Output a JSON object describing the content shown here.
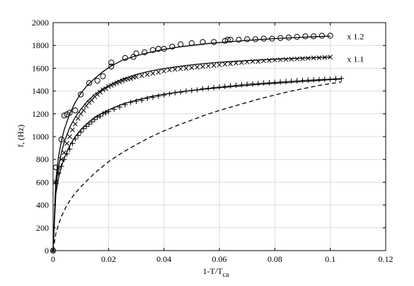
{
  "chart_data": {
    "type": "scatter",
    "xlabel": "1-T/T",
    "xlabel_subscript": "ca",
    "ylabel": "f, (Hz)",
    "xlim": [
      0,
      0.12
    ],
    "ylim": [
      0,
      2000
    ],
    "xticks": [
      0,
      0.02,
      0.04,
      0.06,
      0.08,
      0.1,
      0.12
    ],
    "xtick_labels": [
      "0",
      "0.02",
      "0.04",
      "0.06",
      "0.08",
      "0.1",
      "0.12"
    ],
    "yticks": [
      0,
      200,
      400,
      600,
      800,
      1000,
      1200,
      1400,
      1600,
      1800,
      2000
    ],
    "ytick_labels": [
      "0",
      "200",
      "400",
      "600",
      "800",
      "1000",
      "1200",
      "1400",
      "1600",
      "1800",
      "2000"
    ],
    "grid": true,
    "annotations": [
      {
        "text": "x 1.2",
        "x": 0.1035,
        "y": 1880
      },
      {
        "text": "x 1.1",
        "x": 0.1035,
        "y": 1680
      }
    ],
    "series": [
      {
        "marker": "circle",
        "style": "markers",
        "x": [
          0.0,
          0.001,
          0.003,
          0.004,
          0.005,
          0.006,
          0.008,
          0.01,
          0.013,
          0.016,
          0.018,
          0.021,
          0.021,
          0.026,
          0.029,
          0.03,
          0.033,
          0.036,
          0.038,
          0.04,
          0.043,
          0.046,
          0.05,
          0.054,
          0.058,
          0.062,
          0.063,
          0.064,
          0.067,
          0.07,
          0.073,
          0.076,
          0.079,
          0.082,
          0.085,
          0.088,
          0.091,
          0.094,
          0.097,
          0.1
        ],
        "y": [
          0,
          730,
          975,
          1185,
          1195,
          1210,
          1230,
          1370,
          1470,
          1490,
          1530,
          1615,
          1650,
          1690,
          1700,
          1730,
          1740,
          1760,
          1770,
          1770,
          1790,
          1810,
          1820,
          1830,
          1830,
          1840,
          1850,
          1850,
          1850,
          1855,
          1855,
          1860,
          1860,
          1865,
          1870,
          1875,
          1880,
          1880,
          1885,
          1885
        ]
      },
      {
        "marker": "x",
        "style": "markers",
        "x": [
          0.0,
          0.001,
          0.002,
          0.003,
          0.004,
          0.005,
          0.006,
          0.007,
          0.008,
          0.009,
          0.01,
          0.011,
          0.012,
          0.013,
          0.014,
          0.015,
          0.016,
          0.017,
          0.018,
          0.019,
          0.02,
          0.021,
          0.022,
          0.023,
          0.024,
          0.025,
          0.026,
          0.027,
          0.028,
          0.029,
          0.03,
          0.032,
          0.034,
          0.036,
          0.038,
          0.04,
          0.042,
          0.044,
          0.046,
          0.048,
          0.05,
          0.052,
          0.054,
          0.056,
          0.058,
          0.06,
          0.062,
          0.064,
          0.066,
          0.068,
          0.07,
          0.072,
          0.074,
          0.076,
          0.078,
          0.08,
          0.082,
          0.084,
          0.086,
          0.088,
          0.09,
          0.092,
          0.094,
          0.096,
          0.098,
          0.1
        ],
        "y": [
          0,
          600,
          720,
          800,
          860,
          940,
          1000,
          1060,
          1110,
          1160,
          1200,
          1230,
          1270,
          1300,
          1320,
          1350,
          1370,
          1390,
          1410,
          1420,
          1440,
          1450,
          1460,
          1470,
          1480,
          1490,
          1500,
          1505,
          1510,
          1520,
          1525,
          1535,
          1545,
          1555,
          1565,
          1575,
          1585,
          1590,
          1595,
          1600,
          1605,
          1610,
          1615,
          1620,
          1625,
          1630,
          1635,
          1640,
          1645,
          1650,
          1655,
          1660,
          1660,
          1665,
          1670,
          1672,
          1675,
          1678,
          1680,
          1682,
          1685,
          1688,
          1690,
          1692,
          1695,
          1698
        ]
      },
      {
        "marker": "plus",
        "style": "markers",
        "x": [
          0.0,
          0.001,
          0.002,
          0.003,
          0.004,
          0.005,
          0.006,
          0.007,
          0.008,
          0.009,
          0.01,
          0.011,
          0.012,
          0.013,
          0.014,
          0.015,
          0.016,
          0.017,
          0.018,
          0.019,
          0.02,
          0.022,
          0.024,
          0.026,
          0.028,
          0.03,
          0.032,
          0.034,
          0.036,
          0.038,
          0.04,
          0.042,
          0.044,
          0.046,
          0.048,
          0.05,
          0.052,
          0.054,
          0.056,
          0.058,
          0.06,
          0.062,
          0.064,
          0.066,
          0.068,
          0.07,
          0.072,
          0.074,
          0.076,
          0.078,
          0.08,
          0.082,
          0.084,
          0.086,
          0.088,
          0.09,
          0.092,
          0.094,
          0.096,
          0.098,
          0.1,
          0.102,
          0.104
        ],
        "y": [
          0,
          590,
          680,
          740,
          800,
          850,
          890,
          940,
          980,
          1010,
          1040,
          1070,
          1090,
          1110,
          1130,
          1150,
          1170,
          1180,
          1200,
          1210,
          1220,
          1240,
          1260,
          1280,
          1300,
          1310,
          1320,
          1335,
          1345,
          1355,
          1365,
          1375,
          1385,
          1390,
          1400,
          1405,
          1410,
          1420,
          1425,
          1430,
          1435,
          1440,
          1445,
          1450,
          1455,
          1460,
          1463,
          1466,
          1470,
          1473,
          1476,
          1480,
          1483,
          1486,
          1490,
          1493,
          1496,
          1498,
          1500,
          1503,
          1505,
          1508,
          1510
        ]
      },
      {
        "style": "solid",
        "x": [
          0.0,
          0.001,
          0.002,
          0.003,
          0.004,
          0.006,
          0.008,
          0.01,
          0.012,
          0.015,
          0.018,
          0.021,
          0.025,
          0.03,
          0.035,
          0.04,
          0.045,
          0.05,
          0.055,
          0.06,
          0.065,
          0.07,
          0.075,
          0.08,
          0.085,
          0.09,
          0.095,
          0.1
        ],
        "y": [
          0,
          620,
          830,
          960,
          1060,
          1200,
          1300,
          1380,
          1440,
          1510,
          1570,
          1620,
          1670,
          1710,
          1740,
          1765,
          1785,
          1800,
          1815,
          1825,
          1835,
          1845,
          1852,
          1860,
          1866,
          1872,
          1877,
          1882
        ]
      },
      {
        "style": "solid",
        "x": [
          0.0,
          0.001,
          0.002,
          0.003,
          0.004,
          0.006,
          0.008,
          0.01,
          0.012,
          0.015,
          0.018,
          0.021,
          0.025,
          0.03,
          0.035,
          0.04,
          0.045,
          0.05,
          0.055,
          0.06,
          0.065,
          0.07,
          0.075,
          0.08,
          0.085,
          0.09,
          0.095,
          0.1
        ],
        "y": [
          0,
          560,
          740,
          860,
          950,
          1080,
          1170,
          1240,
          1300,
          1370,
          1420,
          1460,
          1505,
          1545,
          1575,
          1597,
          1615,
          1630,
          1642,
          1652,
          1660,
          1667,
          1673,
          1679,
          1684,
          1689,
          1693,
          1697
        ]
      },
      {
        "style": "solid",
        "x": [
          0.0,
          0.001,
          0.002,
          0.003,
          0.004,
          0.006,
          0.008,
          0.01,
          0.012,
          0.015,
          0.018,
          0.021,
          0.025,
          0.03,
          0.035,
          0.04,
          0.045,
          0.05,
          0.055,
          0.06,
          0.065,
          0.07,
          0.075,
          0.08,
          0.085,
          0.09,
          0.095,
          0.1,
          0.104
        ],
        "y": [
          0,
          500,
          640,
          740,
          810,
          920,
          1000,
          1060,
          1110,
          1170,
          1210,
          1245,
          1285,
          1320,
          1350,
          1372,
          1390,
          1405,
          1418,
          1430,
          1440,
          1450,
          1460,
          1468,
          1476,
          1484,
          1492,
          1500,
          1505
        ]
      },
      {
        "style": "dashed",
        "x": [
          0.0,
          0.001,
          0.002,
          0.003,
          0.005,
          0.0075,
          0.01,
          0.015,
          0.02,
          0.025,
          0.03,
          0.035,
          0.04,
          0.045,
          0.05,
          0.055,
          0.06,
          0.065,
          0.07,
          0.075,
          0.08,
          0.085,
          0.09,
          0.095,
          0.1,
          0.104
        ],
        "y": [
          0,
          150,
          230,
          300,
          400,
          490,
          560,
          680,
          780,
          860,
          930,
          995,
          1050,
          1100,
          1145,
          1190,
          1230,
          1265,
          1300,
          1335,
          1365,
          1395,
          1420,
          1445,
          1465,
          1480
        ]
      }
    ]
  }
}
